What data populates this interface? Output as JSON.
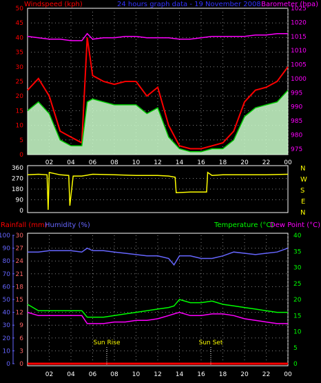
{
  "header": {
    "windspeed_title": "Windspeed (kph)",
    "graph_title": "24 hours graph data - 19 November 2008",
    "barometer_title": "Barometer (hpa)"
  },
  "direction_letters": [
    "N",
    "W",
    "S",
    "E",
    "N"
  ],
  "lower_header": {
    "rainfall": "Rainfall (mm)",
    "humidity": "Humidity (%)",
    "temperature": "Temperature (°C)",
    "dewpoint": "Dew Point (°C)"
  },
  "annotations": {
    "sunrise": "Sun Rise",
    "sunset": "Sun Set"
  },
  "colors": {
    "gust": "#ff0000",
    "avg_wind": "#00cc00",
    "wind_fill": "#ccffcc",
    "barometer": "#ff00ff",
    "direction": "#ffff00",
    "rain": "#ff0000",
    "humidity": "#6666ff",
    "temperature": "#00ff00",
    "dewpoint": "#ff00ff",
    "rain_axis": "#ff6666",
    "sun_label": "#ffff00"
  },
  "chart_data": [
    {
      "type": "line",
      "x_ticks": [
        "02",
        "04",
        "06",
        "08",
        "10",
        "12",
        "14",
        "16",
        "18",
        "20",
        "22",
        "00"
      ],
      "ylim_left": [
        0,
        50
      ],
      "y_ticks_left": [
        0,
        5,
        10,
        15,
        20,
        25,
        30,
        35,
        40,
        45,
        50
      ],
      "ylim_right": [
        973,
        1025
      ],
      "y_ticks_right": [
        975,
        980,
        985,
        990,
        995,
        1000,
        1005,
        1010,
        1015,
        1020,
        1025
      ],
      "x": [
        0,
        1,
        2,
        3,
        4,
        5,
        5.5,
        6,
        7,
        8,
        9,
        10,
        11,
        12,
        13,
        14,
        15,
        16,
        17,
        18,
        19,
        20,
        21,
        22,
        23,
        24
      ],
      "series": [
        {
          "values": [
            22,
            26,
            20,
            8,
            6,
            4,
            40,
            27,
            25,
            24,
            25,
            25,
            20,
            23,
            10,
            3,
            2,
            2,
            3,
            4,
            8,
            18,
            22,
            23,
            25,
            30
          ]
        },
        {
          "values": [
            15,
            18,
            14,
            5,
            3,
            3,
            18,
            19,
            18,
            17,
            17,
            17,
            14,
            16,
            6,
            2,
            1,
            1,
            2,
            2,
            5,
            13,
            16,
            17,
            18,
            22
          ]
        },
        {
          "values": [
            1015,
            1014.5,
            1014,
            1014,
            1013.5,
            1013.5,
            1016,
            1014,
            1014.5,
            1014.5,
            1015,
            1015,
            1014.5,
            1014.5,
            1014.5,
            1014,
            1014,
            1014.5,
            1015,
            1015,
            1015,
            1015,
            1015.5,
            1015.5,
            1016,
            1016
          ]
        }
      ]
    },
    {
      "type": "line",
      "y_ticks": [
        0,
        90,
        180,
        270,
        360
      ],
      "ylim": [
        0,
        360
      ],
      "x": [
        0,
        1,
        1.8,
        1.9,
        2,
        3,
        3.8,
        3.9,
        4.2,
        5,
        6,
        8,
        10,
        12,
        13,
        13.6,
        13.7,
        15,
        16,
        16.5,
        16.6,
        17,
        18,
        20,
        22,
        24
      ],
      "series": [
        {
          "values": [
            300,
            305,
            300,
            5,
            320,
            300,
            295,
            40,
            290,
            290,
            305,
            300,
            295,
            295,
            290,
            280,
            150,
            155,
            155,
            155,
            320,
            295,
            300,
            300,
            300,
            305
          ]
        }
      ]
    },
    {
      "type": "line",
      "x_ticks": [
        "02",
        "04",
        "06",
        "08",
        "10",
        "12",
        "14",
        "16",
        "18",
        "20",
        "22",
        "00"
      ],
      "y_ticks_rain": [
        0,
        3,
        6,
        9,
        12,
        15,
        18,
        21,
        24,
        27,
        30
      ],
      "ylim_rain": [
        0,
        30
      ],
      "y_ticks_humidity": [
        0,
        10,
        20,
        30,
        40,
        50,
        60,
        70,
        80,
        90,
        100
      ],
      "ylim_humidity": [
        0,
        100
      ],
      "y_ticks_temp": [
        0,
        5,
        10,
        15,
        20,
        25,
        30,
        35,
        40
      ],
      "ylim_temp": [
        0,
        40
      ],
      "x": [
        0,
        1,
        2,
        3,
        4,
        5,
        5.5,
        6,
        7,
        8,
        9,
        10,
        11,
        12,
        13,
        13.5,
        14,
        15,
        16,
        17,
        18,
        19,
        20,
        21,
        22,
        23,
        24
      ],
      "series": [
        {
          "values": [
            0,
            0,
            0,
            0,
            0,
            0,
            0,
            0,
            0,
            0,
            0,
            0,
            0,
            0,
            0,
            0,
            0,
            0,
            0,
            0,
            0,
            0,
            0,
            0,
            0,
            0,
            0
          ]
        },
        {
          "values": [
            87,
            87,
            88,
            88,
            88,
            87,
            90,
            88,
            88,
            87,
            86,
            85,
            84,
            84,
            82,
            77,
            84,
            84,
            82,
            82,
            84,
            87,
            86,
            85,
            86,
            87,
            90
          ]
        },
        {
          "values": [
            18.5,
            16.5,
            16.5,
            16.5,
            16.5,
            16.5,
            14.5,
            14.5,
            14.5,
            15,
            15.5,
            16,
            16.5,
            17,
            17.5,
            18,
            20,
            19,
            19,
            19.5,
            18.5,
            18,
            17.5,
            17,
            16.5,
            16,
            16
          ]
        },
        {
          "values": [
            16,
            15,
            15,
            15,
            15,
            15,
            12.5,
            12.5,
            12.5,
            13,
            13,
            13.5,
            13.5,
            14,
            15,
            15.5,
            16,
            15,
            15,
            15.5,
            15.5,
            15,
            14,
            13.5,
            13,
            12.5,
            12.5
          ]
        }
      ]
    }
  ]
}
